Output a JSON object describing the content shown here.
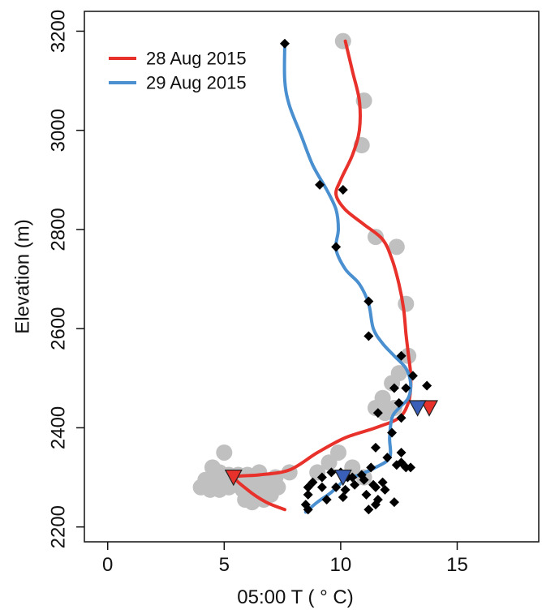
{
  "chart_data": {
    "type": "scatter",
    "xlabel": "05:00 T  ( ° C)",
    "ylabel": "Elevation (m)",
    "xlim": [
      -1,
      18.5
    ],
    "ylim": [
      2170,
      3240
    ],
    "xticks": [
      0,
      5,
      10,
      15
    ],
    "yticks": [
      2200,
      2400,
      2600,
      2800,
      3000,
      3200
    ],
    "grid": false,
    "legend_position": "top-left",
    "colors": {
      "series1": "#e8312a",
      "series2": "#4a90d0",
      "grey_points": "#c0c0c0",
      "black_points": "#000000",
      "red_triangle": "#e8312a",
      "blue_triangle": "#3a5fb8"
    },
    "series": [
      {
        "name": "28 Aug 2015",
        "kind": "line",
        "points": [
          [
            10.2,
            3180
          ],
          [
            10.5,
            3120
          ],
          [
            10.8,
            3060
          ],
          [
            10.8,
            3000
          ],
          [
            10.5,
            2950
          ],
          [
            10.0,
            2900
          ],
          [
            9.8,
            2870
          ],
          [
            10.2,
            2840
          ],
          [
            11.0,
            2810
          ],
          [
            11.8,
            2780
          ],
          [
            12.2,
            2740
          ],
          [
            12.5,
            2690
          ],
          [
            12.7,
            2640
          ],
          [
            12.8,
            2590
          ],
          [
            12.9,
            2550
          ],
          [
            13.0,
            2510
          ],
          [
            13.0,
            2480
          ],
          [
            12.9,
            2450
          ],
          [
            12.5,
            2420
          ],
          [
            11.5,
            2400
          ],
          [
            10.2,
            2380
          ],
          [
            9.0,
            2350
          ],
          [
            7.8,
            2315
          ],
          [
            6.5,
            2305
          ],
          [
            5.5,
            2300
          ],
          [
            6.0,
            2275
          ],
          [
            6.8,
            2250
          ],
          [
            7.6,
            2235
          ]
        ]
      },
      {
        "name": "29 Aug 2015",
        "kind": "line",
        "points": [
          [
            7.6,
            3175
          ],
          [
            7.6,
            3100
          ],
          [
            7.8,
            3050
          ],
          [
            8.3,
            2990
          ],
          [
            8.8,
            2930
          ],
          [
            9.4,
            2880
          ],
          [
            9.8,
            2840
          ],
          [
            9.9,
            2800
          ],
          [
            9.8,
            2760
          ],
          [
            10.2,
            2720
          ],
          [
            10.8,
            2690
          ],
          [
            11.2,
            2650
          ],
          [
            11.4,
            2600
          ],
          [
            11.8,
            2570
          ],
          [
            12.3,
            2545
          ],
          [
            12.8,
            2520
          ],
          [
            13.0,
            2490
          ],
          [
            12.9,
            2460
          ],
          [
            12.5,
            2440
          ],
          [
            12.2,
            2420
          ],
          [
            12.1,
            2380
          ],
          [
            12.1,
            2340
          ],
          [
            11.5,
            2320
          ],
          [
            10.8,
            2305
          ],
          [
            10.2,
            2295
          ],
          [
            9.6,
            2270
          ],
          [
            9.0,
            2250
          ],
          [
            8.5,
            2230
          ]
        ]
      },
      {
        "name": "grey points",
        "kind": "scatter",
        "points": [
          [
            10.1,
            3180
          ],
          [
            11.0,
            3060
          ],
          [
            10.9,
            2970
          ],
          [
            11.5,
            2785
          ],
          [
            12.4,
            2765
          ],
          [
            12.8,
            2650
          ],
          [
            12.9,
            2545
          ],
          [
            12.5,
            2510
          ],
          [
            12.2,
            2490
          ],
          [
            11.8,
            2460
          ],
          [
            11.5,
            2440
          ],
          [
            11.9,
            2430
          ],
          [
            12.3,
            2440
          ],
          [
            9.9,
            2350
          ],
          [
            9.5,
            2330
          ],
          [
            9.0,
            2310
          ],
          [
            10.5,
            2320
          ],
          [
            11.0,
            2300
          ],
          [
            5.0,
            2350
          ],
          [
            4.5,
            2320
          ],
          [
            4.8,
            2310
          ],
          [
            5.2,
            2305
          ],
          [
            5.6,
            2305
          ],
          [
            6.0,
            2305
          ],
          [
            6.5,
            2310
          ],
          [
            4.2,
            2295
          ],
          [
            4.6,
            2290
          ],
          [
            5.0,
            2290
          ],
          [
            5.4,
            2285
          ],
          [
            5.8,
            2285
          ],
          [
            6.3,
            2290
          ],
          [
            6.8,
            2290
          ],
          [
            7.2,
            2300
          ],
          [
            7.8,
            2310
          ],
          [
            4.0,
            2280
          ],
          [
            4.4,
            2275
          ],
          [
            4.8,
            2275
          ],
          [
            5.2,
            2280
          ],
          [
            5.8,
            2275
          ],
          [
            6.2,
            2270
          ],
          [
            6.6,
            2270
          ],
          [
            7.0,
            2265
          ],
          [
            6.7,
            2255
          ],
          [
            6.2,
            2250
          ],
          [
            5.9,
            2255
          ],
          [
            7.3,
            2280
          ]
        ]
      },
      {
        "name": "black points",
        "kind": "scatter",
        "points": [
          [
            7.6,
            3175
          ],
          [
            9.1,
            2890
          ],
          [
            10.1,
            2880
          ],
          [
            9.8,
            2765
          ],
          [
            11.2,
            2655
          ],
          [
            11.2,
            2585
          ],
          [
            12.6,
            2545
          ],
          [
            12.8,
            2480
          ],
          [
            12.3,
            2480
          ],
          [
            13.1,
            2505
          ],
          [
            13.7,
            2485
          ],
          [
            12.5,
            2450
          ],
          [
            11.6,
            2430
          ],
          [
            12.6,
            2420
          ],
          [
            12.2,
            2390
          ],
          [
            11.5,
            2360
          ],
          [
            12.6,
            2350
          ],
          [
            12.0,
            2340
          ],
          [
            12.6,
            2330
          ],
          [
            12.4,
            2325
          ],
          [
            12.8,
            2320
          ],
          [
            13.0,
            2320
          ],
          [
            11.3,
            2320
          ],
          [
            10.9,
            2305
          ],
          [
            11.0,
            2295
          ],
          [
            10.5,
            2300
          ],
          [
            10.3,
            2300
          ],
          [
            10.0,
            2310
          ],
          [
            9.6,
            2310
          ],
          [
            9.2,
            2300
          ],
          [
            8.8,
            2290
          ],
          [
            8.6,
            2280
          ],
          [
            9.2,
            2280
          ],
          [
            9.8,
            2280
          ],
          [
            10.2,
            2275
          ],
          [
            10.6,
            2285
          ],
          [
            11.4,
            2285
          ],
          [
            11.8,
            2290
          ],
          [
            11.5,
            2280
          ],
          [
            11.9,
            2275
          ],
          [
            8.6,
            2265
          ],
          [
            9.4,
            2255
          ],
          [
            10.1,
            2260
          ],
          [
            11.1,
            2265
          ],
          [
            11.6,
            2255
          ],
          [
            8.5,
            2245
          ],
          [
            8.6,
            2235
          ],
          [
            11.5,
            2245
          ],
          [
            12.3,
            2250
          ],
          [
            11.2,
            2235
          ]
        ]
      },
      {
        "name": "red triangles",
        "kind": "marker",
        "points": [
          [
            5.4,
            2300
          ],
          [
            13.8,
            2440
          ]
        ]
      },
      {
        "name": "blue triangles",
        "kind": "marker",
        "points": [
          [
            10.1,
            2300
          ],
          [
            13.3,
            2440
          ]
        ]
      }
    ],
    "legend": [
      {
        "label": "28 Aug 2015"
      },
      {
        "label": "29 Aug 2015"
      }
    ]
  }
}
